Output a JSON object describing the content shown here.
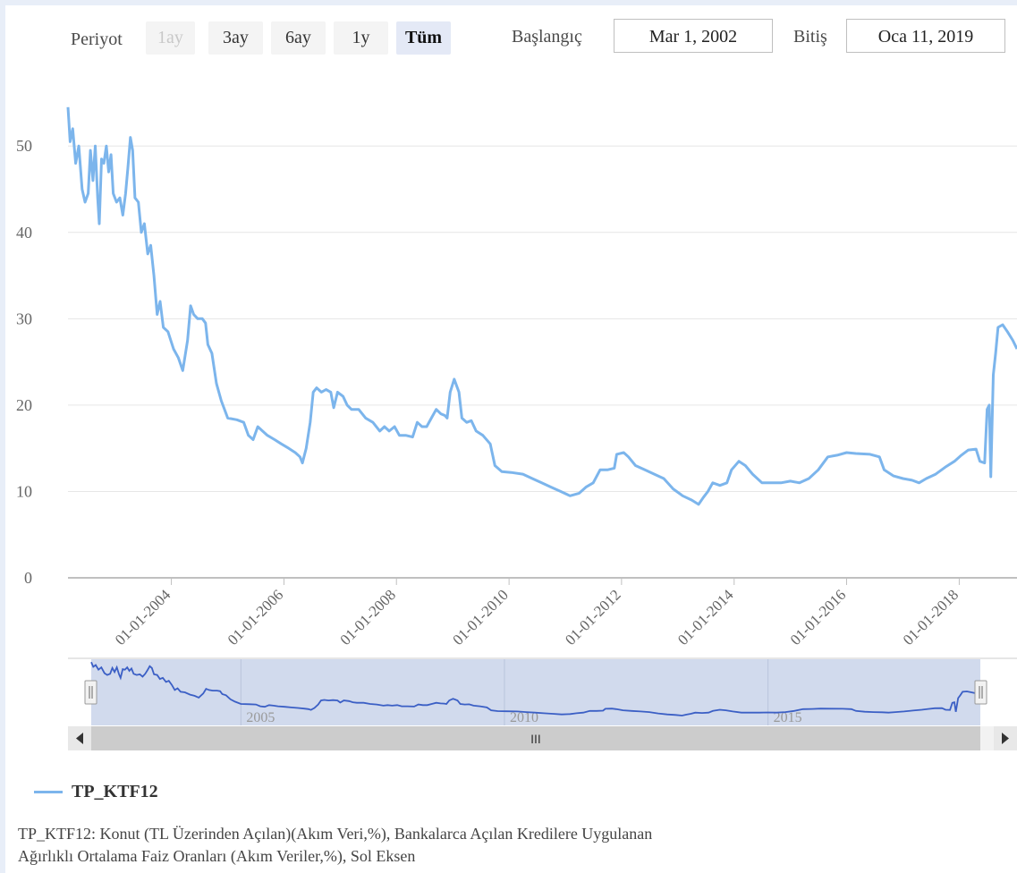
{
  "toolbar": {
    "period_label": "Periyot",
    "range_buttons": [
      {
        "label": "1ay",
        "state": "disabled"
      },
      {
        "label": "3ay",
        "state": "normal"
      },
      {
        "label": "6ay",
        "state": "normal"
      },
      {
        "label": "1y",
        "state": "normal"
      },
      {
        "label": "Tüm",
        "state": "selected"
      }
    ],
    "start_label": "Başlangıç",
    "start_value": "Mar 1, 2002",
    "end_label": "Bitiş",
    "end_value": "Oca 11, 2019"
  },
  "legend": {
    "series_name": "TP_KTF12"
  },
  "description_line1": "TP_KTF12: Konut (TL Üzerinden Açılan)(Akım Veri,%), Bankalarca Açılan Kredilere Uygulanan",
  "description_line2": "Ağırlıklı Ortalama Faiz Oranları (Akım Veriler,%), Sol Eksen",
  "navigator": {
    "scroll_thumb_label": "III",
    "left_arrow": "◀",
    "right_arrow": "▶",
    "handle_label": "||"
  },
  "chart_data": {
    "type": "line",
    "title": "",
    "xlabel": "",
    "ylabel": "",
    "x_range": [
      "2002-03-01",
      "2019-01-11"
    ],
    "ylim": [
      0,
      58
    ],
    "y_ticks": [
      0,
      10,
      20,
      30,
      40,
      50
    ],
    "x_tick_labels": [
      "01-01-2004",
      "01-01-2006",
      "01-01-2008",
      "01-01-2010",
      "01-01-2012",
      "01-01-2014",
      "01-01-2016",
      "01-01-2018"
    ],
    "navigator_x_labels": [
      "2005",
      "2010",
      "2015"
    ],
    "grid": true,
    "legend_position": "bottom-left",
    "series_color": "#7cb5ec",
    "series": [
      {
        "name": "TP_KTF12",
        "points": [
          [
            "2002-03-01",
            54.5
          ],
          [
            "2002-03-15",
            50.5
          ],
          [
            "2002-04-01",
            52.0
          ],
          [
            "2002-04-20",
            48.0
          ],
          [
            "2002-05-10",
            50.0
          ],
          [
            "2002-06-01",
            45.0
          ],
          [
            "2002-06-20",
            43.5
          ],
          [
            "2002-07-10",
            44.5
          ],
          [
            "2002-07-25",
            49.5
          ],
          [
            "2002-08-10",
            46.0
          ],
          [
            "2002-08-25",
            50.0
          ],
          [
            "2002-09-10",
            44.0
          ],
          [
            "2002-09-20",
            41.0
          ],
          [
            "2002-10-05",
            48.5
          ],
          [
            "2002-10-20",
            48.0
          ],
          [
            "2002-11-05",
            50.0
          ],
          [
            "2002-11-20",
            47.0
          ],
          [
            "2002-12-05",
            49.0
          ],
          [
            "2002-12-20",
            44.5
          ],
          [
            "2003-01-10",
            43.5
          ],
          [
            "2003-02-01",
            44.0
          ],
          [
            "2003-02-20",
            42.0
          ],
          [
            "2003-03-10",
            44.5
          ],
          [
            "2003-03-25",
            47.5
          ],
          [
            "2003-04-10",
            51.0
          ],
          [
            "2003-04-25",
            49.5
          ],
          [
            "2003-05-10",
            44.0
          ],
          [
            "2003-06-01",
            43.5
          ],
          [
            "2003-06-20",
            40.0
          ],
          [
            "2003-07-10",
            41.0
          ],
          [
            "2003-08-01",
            37.5
          ],
          [
            "2003-08-20",
            38.5
          ],
          [
            "2003-09-10",
            35.0
          ],
          [
            "2003-10-01",
            30.5
          ],
          [
            "2003-10-20",
            32.0
          ],
          [
            "2003-11-10",
            29.0
          ],
          [
            "2003-12-10",
            28.5
          ],
          [
            "2004-01-15",
            26.5
          ],
          [
            "2004-02-15",
            25.5
          ],
          [
            "2004-03-15",
            24.0
          ],
          [
            "2004-04-15",
            27.5
          ],
          [
            "2004-05-05",
            31.5
          ],
          [
            "2004-05-25",
            30.5
          ],
          [
            "2004-06-20",
            30.0
          ],
          [
            "2004-07-20",
            30.0
          ],
          [
            "2004-08-10",
            29.5
          ],
          [
            "2004-08-25",
            27.0
          ],
          [
            "2004-09-20",
            26.0
          ],
          [
            "2004-10-20",
            22.5
          ],
          [
            "2004-11-20",
            20.5
          ],
          [
            "2005-01-01",
            18.5
          ],
          [
            "2005-03-01",
            18.3
          ],
          [
            "2005-04-15",
            18.0
          ],
          [
            "2005-05-15",
            16.5
          ],
          [
            "2005-06-15",
            16.0
          ],
          [
            "2005-07-15",
            17.5
          ],
          [
            "2005-08-15",
            17.0
          ],
          [
            "2005-09-15",
            16.5
          ],
          [
            "2005-11-01",
            16.0
          ],
          [
            "2005-12-15",
            15.5
          ],
          [
            "2006-02-01",
            15.0
          ],
          [
            "2006-03-15",
            14.5
          ],
          [
            "2006-04-15",
            14.0
          ],
          [
            "2006-05-01",
            13.3
          ],
          [
            "2006-05-25",
            15.0
          ],
          [
            "2006-06-20",
            18.0
          ],
          [
            "2006-07-10",
            21.5
          ],
          [
            "2006-08-01",
            22.0
          ],
          [
            "2006-09-01",
            21.5
          ],
          [
            "2006-10-01",
            21.8
          ],
          [
            "2006-11-01",
            21.5
          ],
          [
            "2006-11-20",
            19.7
          ],
          [
            "2006-12-15",
            21.5
          ],
          [
            "2007-01-20",
            21.0
          ],
          [
            "2007-02-15",
            20.0
          ],
          [
            "2007-03-15",
            19.5
          ],
          [
            "2007-05-01",
            19.5
          ],
          [
            "2007-06-15",
            18.5
          ],
          [
            "2007-08-01",
            18.0
          ],
          [
            "2007-09-15",
            17.0
          ],
          [
            "2007-10-15",
            17.5
          ],
          [
            "2007-11-15",
            17.0
          ],
          [
            "2007-12-20",
            17.5
          ],
          [
            "2008-01-20",
            16.5
          ],
          [
            "2008-03-01",
            16.5
          ],
          [
            "2008-04-15",
            16.3
          ],
          [
            "2008-05-15",
            18.0
          ],
          [
            "2008-06-15",
            17.5
          ],
          [
            "2008-07-15",
            17.5
          ],
          [
            "2008-08-15",
            18.5
          ],
          [
            "2008-09-15",
            19.5
          ],
          [
            "2008-10-15",
            19.0
          ],
          [
            "2008-11-10",
            18.8
          ],
          [
            "2008-11-25",
            18.5
          ],
          [
            "2008-12-15",
            21.5
          ],
          [
            "2009-01-10",
            23.0
          ],
          [
            "2009-02-10",
            21.5
          ],
          [
            "2009-03-01",
            18.5
          ],
          [
            "2009-04-01",
            18.0
          ],
          [
            "2009-05-01",
            18.2
          ],
          [
            "2009-06-01",
            17.0
          ],
          [
            "2009-07-15",
            16.5
          ],
          [
            "2009-09-01",
            15.5
          ],
          [
            "2009-10-01",
            13.0
          ],
          [
            "2009-11-15",
            12.3
          ],
          [
            "2010-01-15",
            12.2
          ],
          [
            "2010-04-01",
            12.0
          ],
          [
            "2010-06-01",
            11.5
          ],
          [
            "2010-08-01",
            11.0
          ],
          [
            "2010-10-01",
            10.5
          ],
          [
            "2010-12-01",
            10.0
          ],
          [
            "2011-02-01",
            9.5
          ],
          [
            "2011-04-01",
            9.8
          ],
          [
            "2011-05-15",
            10.5
          ],
          [
            "2011-07-01",
            11.0
          ],
          [
            "2011-08-15",
            12.5
          ],
          [
            "2011-10-01",
            12.5
          ],
          [
            "2011-11-15",
            12.7
          ],
          [
            "2011-12-01",
            14.3
          ],
          [
            "2012-01-15",
            14.5
          ],
          [
            "2012-02-15",
            14.0
          ],
          [
            "2012-04-01",
            13.0
          ],
          [
            "2012-06-01",
            12.5
          ],
          [
            "2012-08-01",
            12.0
          ],
          [
            "2012-10-01",
            11.5
          ],
          [
            "2012-12-01",
            10.3
          ],
          [
            "2013-02-01",
            9.5
          ],
          [
            "2013-04-01",
            9.0
          ],
          [
            "2013-05-15",
            8.5
          ],
          [
            "2013-06-15",
            9.3
          ],
          [
            "2013-07-15",
            10.0
          ],
          [
            "2013-08-15",
            11.0
          ],
          [
            "2013-10-01",
            10.7
          ],
          [
            "2013-11-15",
            11.0
          ],
          [
            "2013-12-15",
            12.5
          ],
          [
            "2014-02-01",
            13.5
          ],
          [
            "2014-03-15",
            13.0
          ],
          [
            "2014-05-01",
            12.0
          ],
          [
            "2014-07-01",
            11.0
          ],
          [
            "2014-09-01",
            11.0
          ],
          [
            "2014-11-01",
            11.0
          ],
          [
            "2015-01-01",
            11.2
          ],
          [
            "2015-03-01",
            11.0
          ],
          [
            "2015-05-01",
            11.5
          ],
          [
            "2015-07-01",
            12.5
          ],
          [
            "2015-09-01",
            14.0
          ],
          [
            "2015-11-01",
            14.2
          ],
          [
            "2016-01-01",
            14.5
          ],
          [
            "2016-03-01",
            14.4
          ],
          [
            "2016-06-01",
            14.3
          ],
          [
            "2016-08-01",
            14.0
          ],
          [
            "2016-09-01",
            12.5
          ],
          [
            "2016-11-01",
            11.8
          ],
          [
            "2017-01-01",
            11.5
          ],
          [
            "2017-03-01",
            11.3
          ],
          [
            "2017-04-15",
            11.0
          ],
          [
            "2017-06-01",
            11.5
          ],
          [
            "2017-08-01",
            12.0
          ],
          [
            "2017-10-01",
            12.8
          ],
          [
            "2017-12-01",
            13.5
          ],
          [
            "2018-01-15",
            14.2
          ],
          [
            "2018-03-01",
            14.8
          ],
          [
            "2018-04-20",
            14.9
          ],
          [
            "2018-05-15",
            13.5
          ],
          [
            "2018-06-15",
            13.3
          ],
          [
            "2018-07-01",
            19.5
          ],
          [
            "2018-07-15",
            20.0
          ],
          [
            "2018-07-25",
            11.7
          ],
          [
            "2018-08-10",
            23.5
          ],
          [
            "2018-08-25",
            26.0
          ],
          [
            "2018-09-10",
            29.0
          ],
          [
            "2018-10-10",
            29.3
          ],
          [
            "2018-11-10",
            28.5
          ],
          [
            "2018-12-15",
            27.5
          ],
          [
            "2019-01-11",
            26.5
          ]
        ]
      }
    ]
  }
}
